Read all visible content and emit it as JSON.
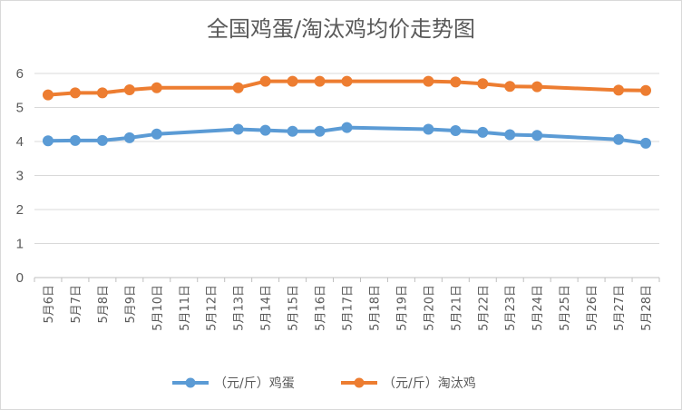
{
  "chart_data": {
    "type": "line",
    "title": "全国鸡蛋/淘汰鸡均价走势图",
    "xlabel": "",
    "ylabel": "",
    "ylim": [
      0,
      6
    ],
    "yticks": [
      0,
      1,
      2,
      3,
      4,
      5,
      6
    ],
    "grid": true,
    "legend_position": "bottom",
    "categories": [
      "5月6日",
      "5月7日",
      "5月8日",
      "5月9日",
      "5月10日",
      "5月11日",
      "5月12日",
      "5月13日",
      "5月14日",
      "5月15日",
      "5月16日",
      "5月17日",
      "5月18日",
      "5月19日",
      "5月20日",
      "5月21日",
      "5月22日",
      "5月23日",
      "5月24日",
      "5月25日",
      "5月26日",
      "5月27日",
      "5月28日"
    ],
    "series": [
      {
        "name": "（元/斤）鸡蛋",
        "color": "#5b9bd5",
        "values": [
          4.02,
          4.03,
          4.03,
          4.11,
          4.22,
          null,
          null,
          4.36,
          4.33,
          4.3,
          4.3,
          4.41,
          null,
          null,
          4.36,
          4.32,
          4.27,
          4.2,
          4.18,
          null,
          null,
          4.06,
          3.95
        ]
      },
      {
        "name": "（元/斤）淘汰鸡",
        "color": "#ed7d31",
        "values": [
          5.37,
          5.43,
          5.43,
          5.52,
          5.58,
          null,
          null,
          5.58,
          5.77,
          5.77,
          5.77,
          5.77,
          null,
          null,
          5.77,
          5.75,
          5.7,
          5.62,
          5.61,
          null,
          null,
          5.51,
          5.5
        ]
      }
    ]
  }
}
